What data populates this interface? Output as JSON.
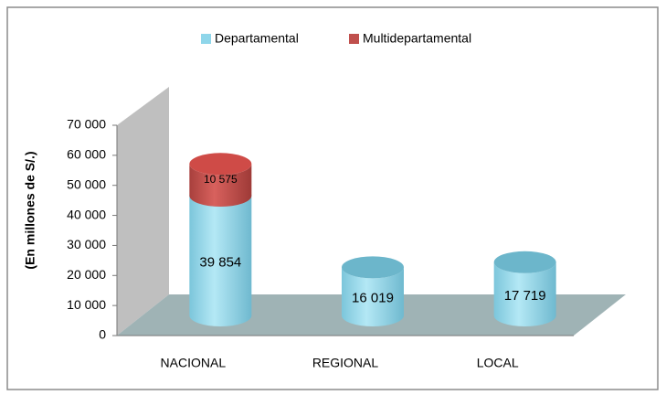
{
  "chart_data": {
    "type": "bar3d-stacked",
    "y_label": "(En millones de S/.)",
    "categories": [
      "NACIONAL",
      "REGIONAL",
      "LOCAL"
    ],
    "series": [
      {
        "name": "Departamental",
        "color": "#8fd6ea",
        "values": [
          39854,
          16019,
          17719
        ],
        "value_labels": [
          "39 854",
          "16 019",
          "17 719"
        ]
      },
      {
        "name": "Multidepartamental",
        "color": "#c0504d",
        "values": [
          10575,
          null,
          null
        ],
        "value_labels": [
          "10 575",
          null,
          null
        ]
      }
    ],
    "ylim": [
      0,
      70000
    ],
    "yticks": [
      0,
      {
        "value": 10000,
        "label": "10 000"
      },
      {
        "value": 20000,
        "label": "20 000"
      },
      {
        "value": 30000,
        "label": "30 000"
      },
      {
        "value": 40000,
        "label": "40 000"
      },
      {
        "value": 50000,
        "label": "50 000"
      },
      {
        "value": 60000,
        "label": "60 000"
      },
      {
        "value": 70000,
        "label": "70 000"
      }
    ],
    "legend": "top"
  }
}
